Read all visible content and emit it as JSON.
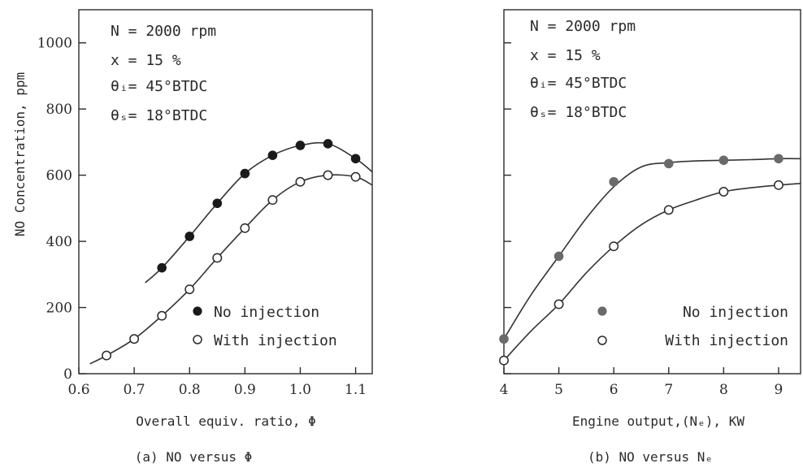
{
  "chart_data": [
    {
      "type": "scatter",
      "panel_caption": "(a)  NO versus Φ",
      "xlabel": "Overall equiv. ratio, Φ",
      "ylabel": "NO Concentration,  ppm",
      "xlim": [
        0.6,
        1.13
      ],
      "ylim": [
        0,
        1100
      ],
      "x_ticks": [
        "0.6",
        "0.7",
        "0.8",
        "0.9",
        "1.0",
        "1.1"
      ],
      "y_ticks": [
        "0",
        "200",
        "400",
        "600",
        "800",
        "1000"
      ],
      "conditions": [
        "N  =  2000  rpm",
        "x  =  15  %",
        "θᵢ=  45°BTDC",
        "θₛ=  18°BTDC"
      ],
      "legend": [
        "No injection",
        "With injection"
      ],
      "legend_position": "bottom-right",
      "grid": false,
      "series": [
        {
          "name": "No injection",
          "marker": "filled",
          "color": "#1a1a1a",
          "x": [
            0.75,
            0.8,
            0.85,
            0.9,
            0.95,
            1.0,
            1.05,
            1.1
          ],
          "y": [
            320,
            415,
            515,
            605,
            660,
            690,
            695,
            650
          ],
          "curve_x": [
            0.72,
            0.75,
            0.8,
            0.85,
            0.9,
            0.95,
            1.0,
            1.05,
            1.1,
            1.13
          ],
          "curve_y": [
            275,
            320,
            415,
            515,
            605,
            660,
            690,
            695,
            650,
            610
          ]
        },
        {
          "name": "With injection",
          "marker": "open",
          "color": "#2a2a2a",
          "x": [
            0.65,
            0.7,
            0.75,
            0.8,
            0.85,
            0.9,
            0.95,
            1.0,
            1.05,
            1.1
          ],
          "y": [
            55,
            105,
            175,
            255,
            350,
            440,
            525,
            580,
            600,
            595
          ],
          "curve_x": [
            0.62,
            0.65,
            0.7,
            0.75,
            0.8,
            0.85,
            0.9,
            0.95,
            1.0,
            1.05,
            1.1,
            1.13
          ],
          "curve_y": [
            30,
            55,
            105,
            175,
            255,
            350,
            440,
            525,
            580,
            600,
            595,
            570
          ]
        }
      ]
    },
    {
      "type": "scatter",
      "panel_caption": "(b)  NO versus Nₑ",
      "xlabel": "Engine output,(Nₑ),  KW",
      "xlim": [
        4,
        9.4
      ],
      "ylim": [
        0,
        1100
      ],
      "x_ticks": [
        "4",
        "5",
        "6",
        "7",
        "8",
        "9"
      ],
      "conditions": [
        "N  =  2000  rpm",
        "x  =  15  %",
        "θᵢ=  45°BTDC",
        "θₛ=  18°BTDC"
      ],
      "legend": [
        "No injection",
        "With injection"
      ],
      "legend_position": "bottom-right",
      "grid": false,
      "series": [
        {
          "name": "No injection",
          "marker": "filled",
          "color": "#6a6a6a",
          "x": [
            4,
            5,
            6,
            7,
            8,
            9
          ],
          "y": [
            105,
            355,
            580,
            635,
            645,
            650
          ],
          "curve_x": [
            4,
            4.5,
            5,
            5.5,
            6,
            6.5,
            7,
            7.5,
            8,
            8.5,
            9,
            9.4
          ],
          "curve_y": [
            105,
            240,
            355,
            470,
            565,
            625,
            638,
            643,
            645,
            647,
            650,
            650
          ]
        },
        {
          "name": "With injection",
          "marker": "open",
          "color": "#2a2a2a",
          "x": [
            4,
            5,
            6,
            7,
            8,
            9
          ],
          "y": [
            40,
            210,
            385,
            495,
            550,
            570
          ],
          "curve_x": [
            4,
            4.5,
            5,
            5.5,
            6,
            6.5,
            7,
            7.5,
            8,
            8.5,
            9,
            9.4
          ],
          "curve_y": [
            40,
            130,
            210,
            305,
            385,
            450,
            495,
            525,
            550,
            562,
            570,
            575
          ]
        }
      ]
    }
  ]
}
